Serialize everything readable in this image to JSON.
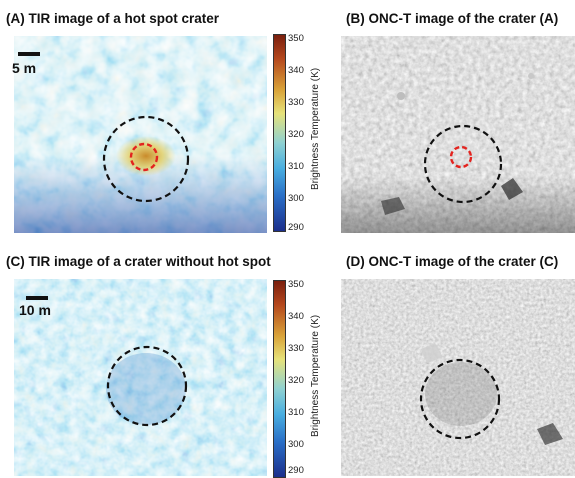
{
  "panels": [
    {
      "title": "(A) TIR image of a hot spot crater",
      "scale_label": "5 m",
      "type": "thermal",
      "crater_circle": true,
      "hot_spot_circle": true
    },
    {
      "title": "(B) ONC-T image of the crater (A)",
      "type": "optical",
      "crater_circle": true,
      "hot_spot_circle": true
    },
    {
      "title": "(C) TIR image of a crater without hot spot",
      "scale_label": "10 m",
      "type": "thermal",
      "crater_circle": true,
      "hot_spot_circle": false
    },
    {
      "title": "(D) ONC-T image of the crater (C)",
      "type": "optical",
      "crater_circle": true,
      "hot_spot_circle": false
    }
  ],
  "colorbar": {
    "label": "Brightness Temperature (K)",
    "ticks": [
      "350",
      "340",
      "330",
      "320",
      "310",
      "300",
      "290"
    ],
    "range": [
      290,
      350
    ],
    "colors": {
      "high": "#7a1f0e",
      "mid_high": "#e6e27a",
      "mid": "#49aee0",
      "low": "#1c2f8c"
    }
  },
  "circle_colors": {
    "crater": "#111111",
    "hot_spot": "#e3231f"
  }
}
